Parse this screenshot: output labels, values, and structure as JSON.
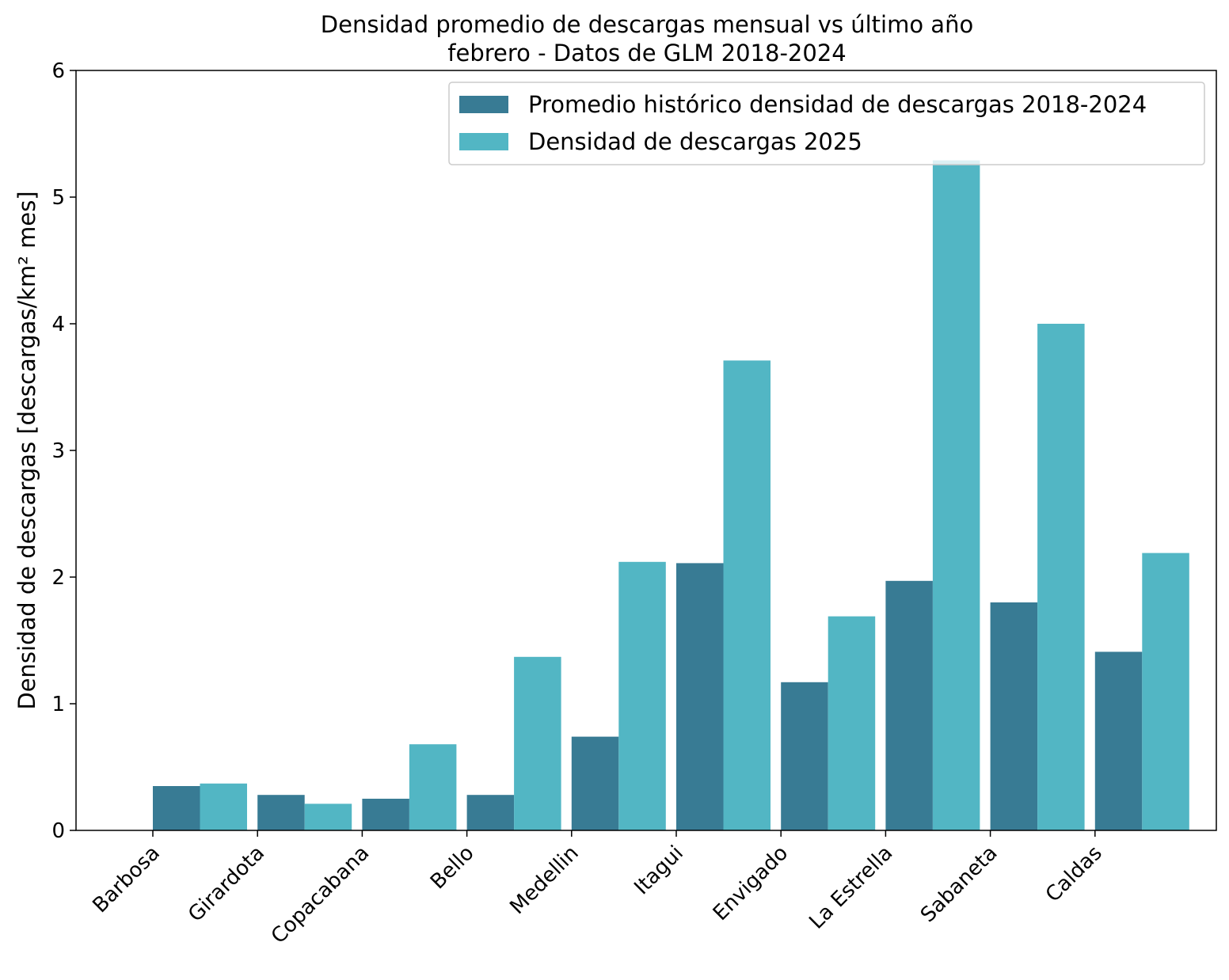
{
  "chart_data": {
    "type": "bar",
    "title": "Densidad promedio de descargas mensual vs último año",
    "subtitle": "febrero - Datos de GLM 2018-2024",
    "xlabel": "",
    "ylabel": "Densidad de descargas [descargas/km² mes]",
    "ylim": [
      0,
      6
    ],
    "yticks": [
      "0",
      "1",
      "2",
      "3",
      "4",
      "5",
      "6"
    ],
    "grid": false,
    "legend_position": "top-right",
    "categories": [
      "Barbosa",
      "Girardota",
      "Copacabana",
      "Bello",
      "Medellin",
      "Itagui",
      "Envigado",
      "La Estrella",
      "Sabaneta",
      "Caldas"
    ],
    "series": [
      {
        "name": "Promedio histórico densidad de descargas 2018-2024",
        "color": "#387b94",
        "values": [
          0.35,
          0.28,
          0.25,
          0.28,
          0.74,
          2.11,
          1.17,
          1.97,
          1.8,
          1.41
        ]
      },
      {
        "name": "Densidad de descargas 2025",
        "color": "#52b6c4",
        "values": [
          0.37,
          0.21,
          0.68,
          1.37,
          2.12,
          3.71,
          1.69,
          5.29,
          4.0,
          2.19
        ]
      }
    ]
  }
}
